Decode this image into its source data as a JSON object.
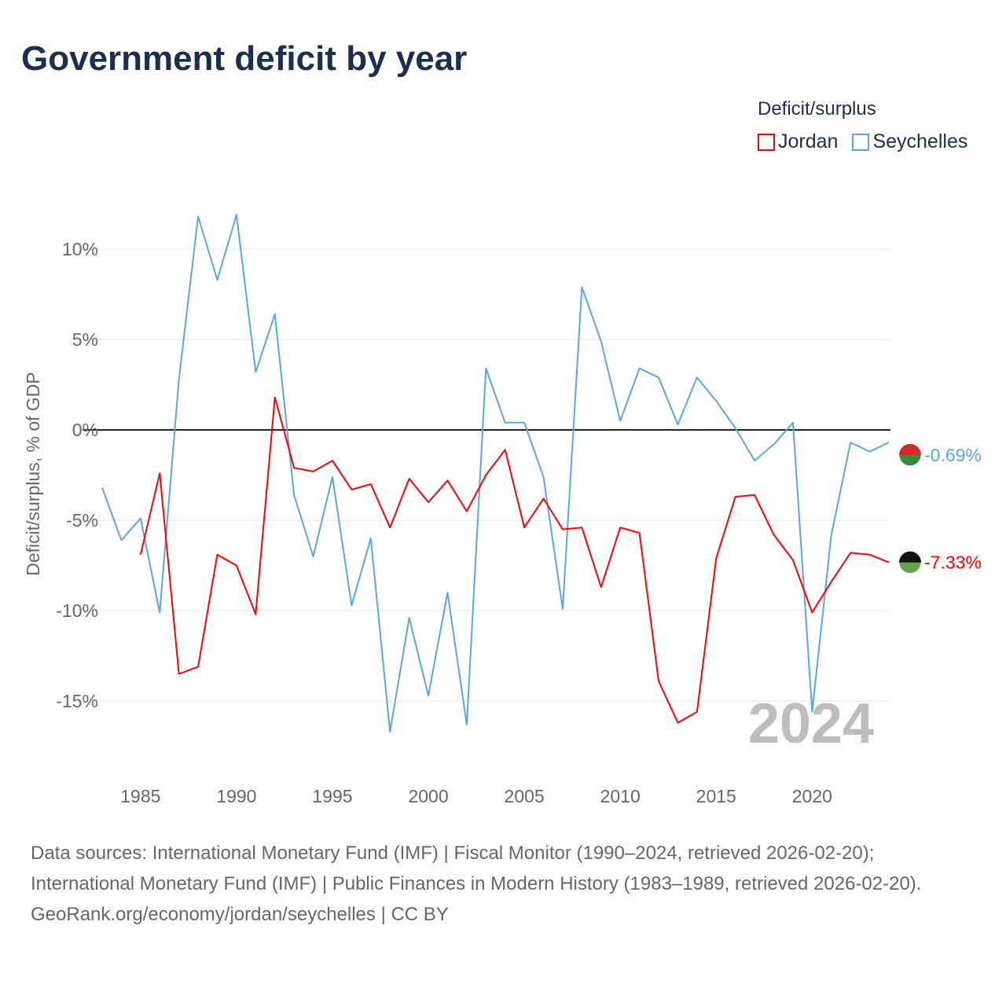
{
  "chart_data": {
    "type": "line",
    "title": "Government deficit by year",
    "ylabel": "Deficit/surplus, % of GDP",
    "xlabel": "",
    "ylim": [
      -18,
      13
    ],
    "xlim": [
      1983,
      2024
    ],
    "yticks": [
      10,
      5,
      0,
      -5,
      -10,
      -15
    ],
    "ytick_labels": [
      "10%",
      "5%",
      "0%",
      "-5%",
      "-10%",
      "-15%"
    ],
    "xticks": [
      1985,
      1990,
      1995,
      2000,
      2005,
      2010,
      2015,
      2020
    ],
    "xtick_labels": [
      "1985",
      "1990",
      "1995",
      "2000",
      "2005",
      "2010",
      "2015",
      "2020"
    ],
    "grid": true,
    "legend_title": "Deficit/surplus",
    "legend_placement": "top-right",
    "year_watermark": "2024",
    "series": [
      {
        "name": "Jordan",
        "color": "#ff0000",
        "end_label": "-7.33%",
        "x": [
          1985,
          1986,
          1987,
          1988,
          1989,
          1990,
          1991,
          1992,
          1993,
          1994,
          1995,
          1996,
          1997,
          1998,
          1999,
          2000,
          2001,
          2002,
          2003,
          2004,
          2005,
          2006,
          2007,
          2008,
          2009,
          2010,
          2011,
          2012,
          2013,
          2014,
          2015,
          2016,
          2017,
          2018,
          2019,
          2020,
          2021,
          2022,
          2023,
          2024
        ],
        "values": [
          -6.9,
          -2.4,
          -13.5,
          -13.1,
          -6.9,
          -7.5,
          -10.2,
          1.8,
          -2.1,
          -2.3,
          -1.7,
          -3.3,
          -3.0,
          -5.4,
          -2.7,
          -4.0,
          -2.8,
          -4.5,
          -2.5,
          -1.1,
          -5.4,
          -3.8,
          -5.5,
          -5.4,
          -8.7,
          -5.4,
          -5.7,
          -13.9,
          -16.2,
          -15.6,
          -7.1,
          -3.7,
          -3.6,
          -5.8,
          -7.2,
          -10.1,
          -8.4,
          -6.8,
          -6.9,
          -7.33
        ]
      },
      {
        "name": "Seychelles",
        "color": "#5aa5e8",
        "end_label": "-0.69%",
        "x": [
          1983,
          1984,
          1985,
          1986,
          1987,
          1988,
          1989,
          1990,
          1991,
          1992,
          1993,
          1994,
          1995,
          1996,
          1997,
          1998,
          1999,
          2000,
          2001,
          2002,
          2003,
          2004,
          2005,
          2006,
          2007,
          2008,
          2009,
          2010,
          2011,
          2012,
          2013,
          2014,
          2015,
          2016,
          2017,
          2018,
          2019,
          2020,
          2021,
          2022,
          2023,
          2024
        ],
        "values": [
          -3.2,
          -6.1,
          -4.9,
          -10.1,
          2.8,
          11.8,
          8.3,
          11.9,
          3.2,
          6.4,
          -3.6,
          -7.0,
          -2.6,
          -9.7,
          -6.0,
          -16.7,
          -10.4,
          -14.7,
          -9.0,
          -16.3,
          3.4,
          0.4,
          0.4,
          -2.6,
          -9.9,
          7.9,
          4.9,
          0.5,
          3.4,
          2.9,
          0.3,
          2.9,
          1.6,
          0.1,
          -1.7,
          -0.8,
          0.4,
          -15.6,
          -5.8,
          -0.7,
          -1.2,
          -0.69
        ]
      }
    ]
  },
  "footer": {
    "sources": "Data sources: International Monetary Fund (IMF) | Fiscal Monitor (1990–2024, retrieved 2026-02-20); International Monetary Fund (IMF) | Public Finances in Modern History (1983–1989, retrieved 2026-02-20).",
    "credit": "GeoRank.org/economy/jordan/seychelles | CC BY"
  }
}
